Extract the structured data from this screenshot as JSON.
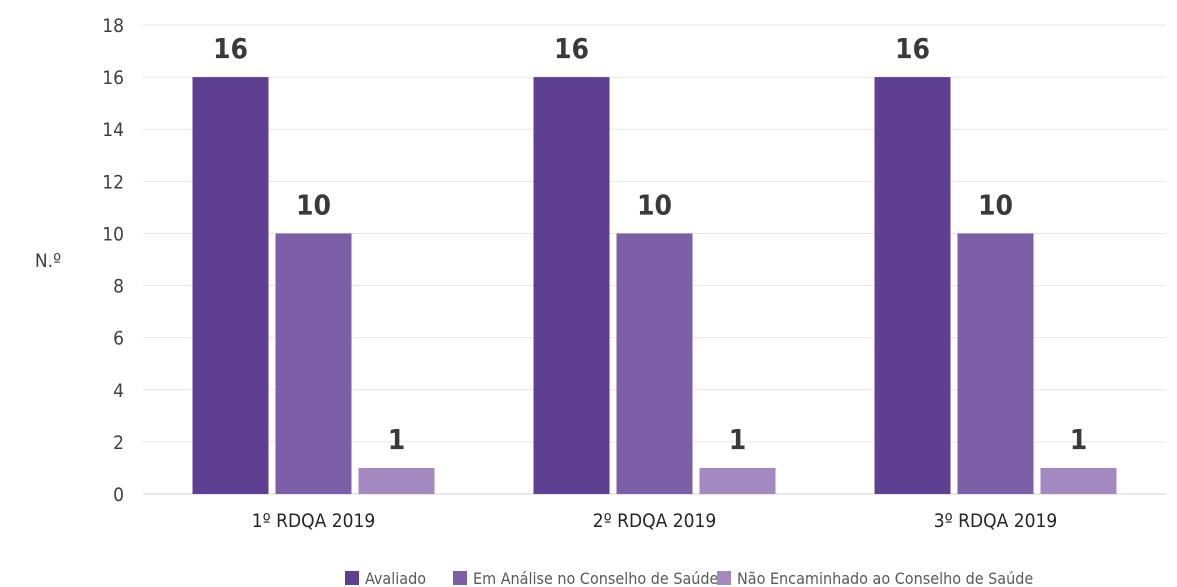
{
  "chart_data": {
    "type": "bar",
    "title": "",
    "xlabel": "",
    "ylabel": "N.º",
    "ylim": [
      0,
      18
    ],
    "y_ticks": [
      0,
      2,
      4,
      6,
      8,
      10,
      12,
      14,
      16,
      18
    ],
    "grid": true,
    "legend_position": "bottom",
    "categories": [
      "1º RDQA 2019",
      "2º RDQA 2019",
      "3º RDQA 2019"
    ],
    "series": [
      {
        "name": "Avaliado",
        "color": "#5f3f92",
        "values": [
          16,
          16,
          16
        ]
      },
      {
        "name": "Em Análise no Conselho de Saúde",
        "color": "#7c5fa6",
        "values": [
          10,
          10,
          10
        ]
      },
      {
        "name": "Não Encaminhado ao Conselho de Saúde",
        "color": "#a389c0",
        "values": [
          1,
          1,
          1
        ]
      }
    ],
    "data_labels": true
  }
}
